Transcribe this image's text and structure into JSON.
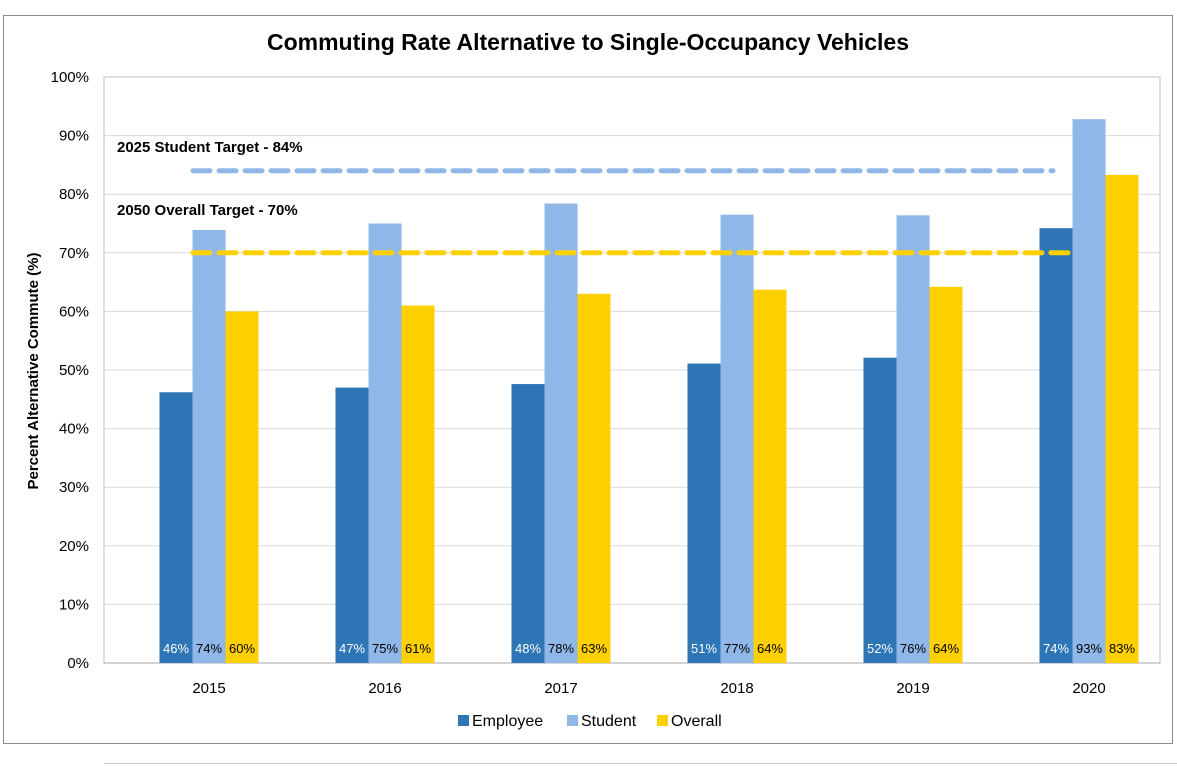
{
  "chart_data": {
    "type": "bar",
    "title": "Commuting Rate Alternative to Single-Occupancy Vehicles",
    "xlabel": "",
    "ylabel": "Percent Alternative Commute (%)",
    "ylim": [
      0,
      100
    ],
    "yticks": [
      "0%",
      "10%",
      "20%",
      "30%",
      "40%",
      "50%",
      "60%",
      "70%",
      "80%",
      "90%",
      "100%"
    ],
    "grid": true,
    "legend_position": "bottom",
    "categories": [
      "2015",
      "2016",
      "2017",
      "2018",
      "2019",
      "2020"
    ],
    "series": [
      {
        "name": "Employee",
        "color": "#2e75b6",
        "label_color": "#ffffff",
        "values": [
          46.2,
          47.0,
          47.6,
          51.1,
          52.1,
          74.2
        ],
        "labels": [
          "46%",
          "47%",
          "48%",
          "51%",
          "52%",
          "74%"
        ]
      },
      {
        "name": "Student",
        "color": "#8fb8e8",
        "label_color": "#000000",
        "values": [
          73.9,
          75.0,
          78.4,
          76.5,
          76.4,
          92.8
        ],
        "labels": [
          "74%",
          "75%",
          "78%",
          "77%",
          "76%",
          "93%"
        ]
      },
      {
        "name": "Overall",
        "color": "#ffd000",
        "label_color": "#000000",
        "values": [
          60.0,
          61.0,
          63.0,
          63.7,
          64.2,
          83.3
        ],
        "labels": [
          "60%",
          "61%",
          "63%",
          "64%",
          "64%",
          "83%"
        ]
      }
    ],
    "target_lines": [
      {
        "label": "2025 Student Target - 84%",
        "value": 84,
        "color": "#8fb8e8"
      },
      {
        "label": "2050 Overall Target - 70%",
        "value": 70,
        "color": "#ffd000"
      }
    ]
  }
}
